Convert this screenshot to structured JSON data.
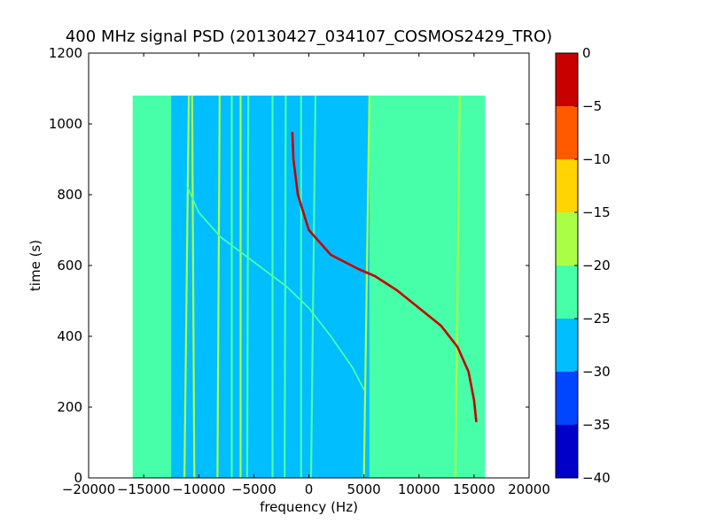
{
  "chart_data": {
    "type": "heatmap",
    "title": "400 MHz signal PSD (20130427_034107_COSMOS2429_TRO)",
    "xlabel": "frequency (Hz)",
    "ylabel": "time (s)",
    "xlim": [
      -20000,
      20000
    ],
    "ylim": [
      0,
      1200
    ],
    "x_ticks": [
      -20000,
      -15000,
      -10000,
      -5000,
      0,
      5000,
      10000,
      15000,
      20000
    ],
    "y_ticks": [
      0,
      200,
      400,
      600,
      800,
      1000,
      1200
    ],
    "x_tick_labels": [
      "−20000",
      "−15000",
      "−10000",
      "−5000",
      "0",
      "5000",
      "10000",
      "15000",
      "20000"
    ],
    "y_tick_labels": [
      "0",
      "200",
      "400",
      "600",
      "800",
      "1000",
      "1200"
    ],
    "data_extent": {
      "x": [
        -16000,
        16000
      ],
      "y": [
        0,
        1080
      ]
    },
    "colorbar": {
      "levels": [
        -40,
        -35,
        -30,
        -25,
        -20,
        -15,
        -10,
        -5,
        0
      ],
      "tick_labels": [
        "−40",
        "−35",
        "−30",
        "−25",
        "−20",
        "−15",
        "−10",
        "−5",
        "0"
      ],
      "colors": [
        "#0000c8",
        "#0046ff",
        "#00beff",
        "#46ffa8",
        "#aaff46",
        "#ffd400",
        "#ff5a00",
        "#c80000"
      ]
    },
    "background": {
      "outer_band_color": "#46ffa8",
      "inner_band_color": "#00beff",
      "inner_band_x": [
        -12500,
        5500
      ]
    },
    "vertical_lines": [
      {
        "x0": -11300,
        "x1": -10900,
        "color": "#aaff46"
      },
      {
        "x0": -10400,
        "x1": -10600,
        "color": "#aaff46"
      },
      {
        "x0": -8300,
        "x1": -8100,
        "color": "#aaff46"
      },
      {
        "x0": -7000,
        "x1": -7000,
        "color": "#46ffa8"
      },
      {
        "x0": -6200,
        "x1": -6200,
        "color": "#aaff46"
      },
      {
        "x0": -5600,
        "x1": -5500,
        "color": "#46ffa8"
      },
      {
        "x0": -3300,
        "x1": -3300,
        "color": "#46ffa8"
      },
      {
        "x0": -2200,
        "x1": -2100,
        "color": "#46ffa8"
      },
      {
        "x0": -700,
        "x1": -700,
        "color": "#46ffa8"
      },
      {
        "x0": 200,
        "x1": 600,
        "color": "#46ffa8"
      },
      {
        "x0": 5000,
        "x1": 5500,
        "color": "#aaff46"
      },
      {
        "x0": 12700,
        "x1": 12800,
        "color": "#46ffa8"
      },
      {
        "x0": 13300,
        "x1": 13700,
        "color": "#aaff46"
      }
    ],
    "series": [
      {
        "points": [
          {
            "x": -1500,
            "y": 975
          },
          {
            "x": -1400,
            "y": 900
          },
          {
            "x": -1000,
            "y": 800
          },
          {
            "x": 0,
            "y": 700
          },
          {
            "x": 2000,
            "y": 630
          },
          {
            "x": 4500,
            "y": 590
          },
          {
            "x": 6000,
            "y": 570
          },
          {
            "x": 8000,
            "y": 530
          },
          {
            "x": 10000,
            "y": 480
          },
          {
            "x": 12000,
            "y": 430
          },
          {
            "x": 13500,
            "y": 370
          },
          {
            "x": 14500,
            "y": 300
          },
          {
            "x": 15000,
            "y": 220
          },
          {
            "x": 15200,
            "y": 160
          }
        ],
        "color": "#c80000"
      },
      {
        "points": [
          {
            "x": -11000,
            "y": 820
          },
          {
            "x": -10000,
            "y": 750
          },
          {
            "x": -8000,
            "y": 680
          },
          {
            "x": -5000,
            "y": 610
          },
          {
            "x": -2000,
            "y": 540
          },
          {
            "x": 0,
            "y": 480
          },
          {
            "x": 2000,
            "y": 400
          },
          {
            "x": 4000,
            "y": 310
          },
          {
            "x": 5000,
            "y": 250
          }
        ],
        "color": "#46ffa8"
      }
    ]
  }
}
